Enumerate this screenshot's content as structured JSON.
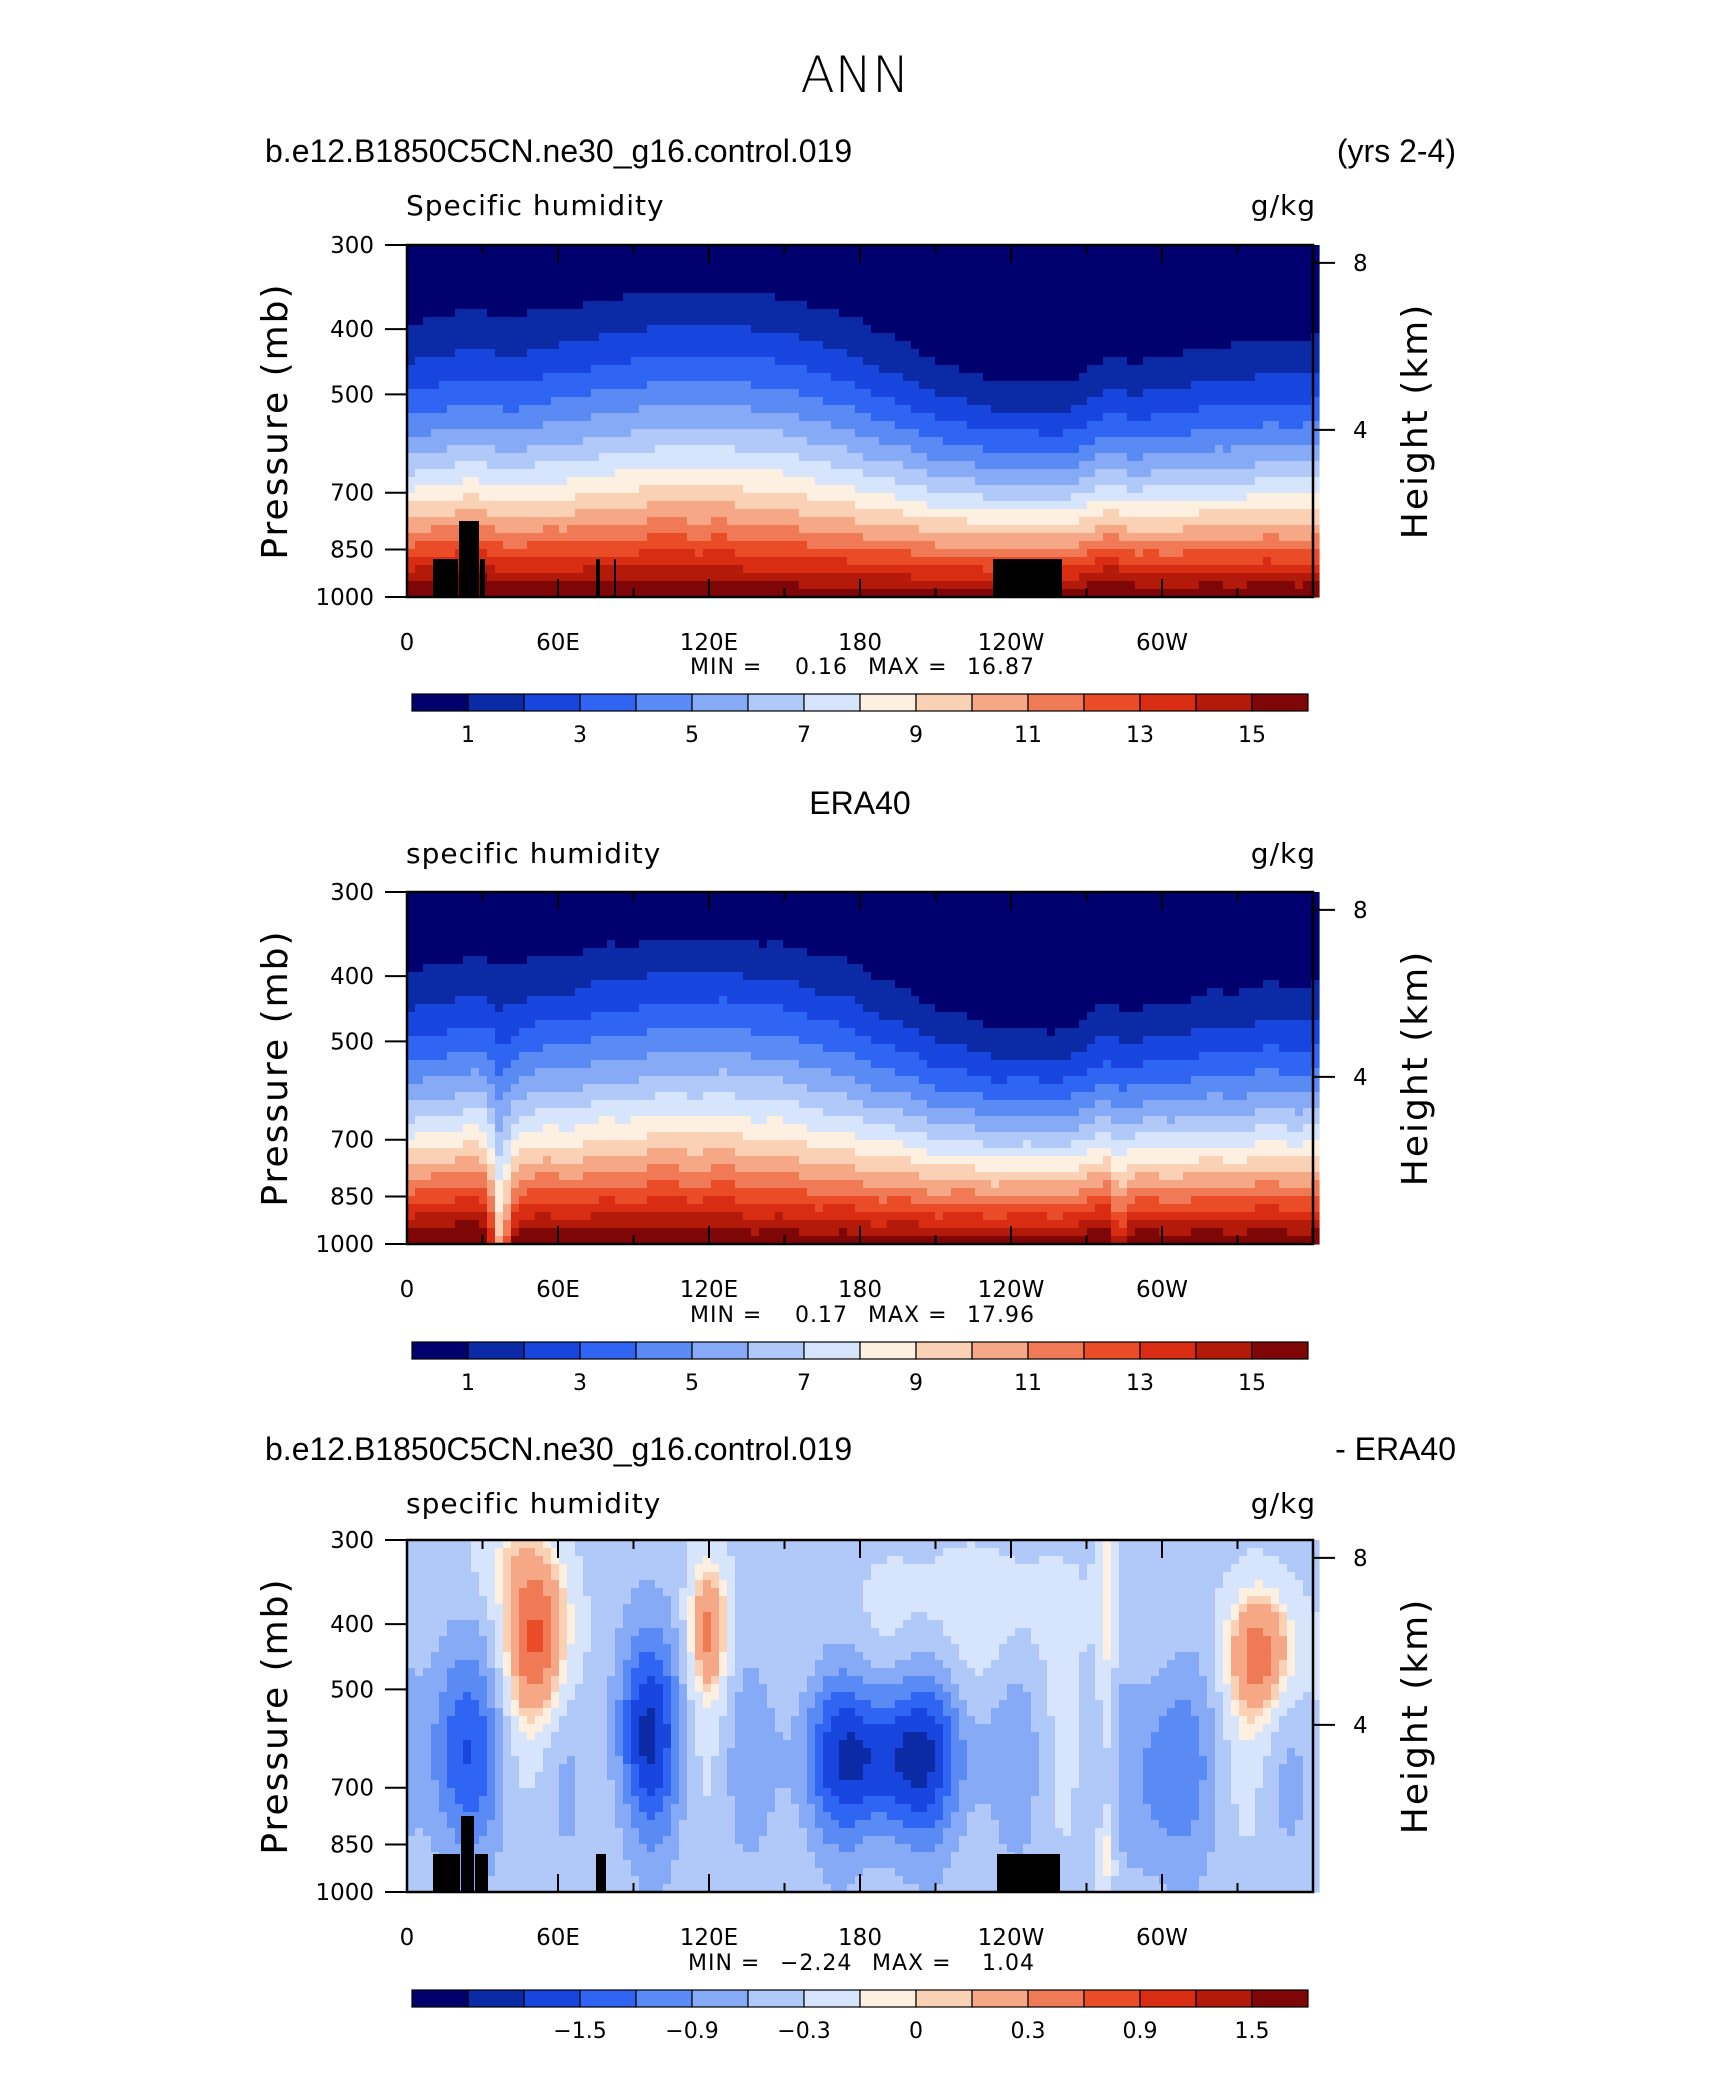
{
  "page_title": "ANN",
  "panels": [
    {
      "header_left": "b.e12.B1850C5CN.ne30_g16.control.019",
      "header_right": "(yrs 2-4)",
      "subtitle_left": "Specific humidity",
      "subtitle_right": "g/kg",
      "stats": {
        "min_label": "MIN =",
        "min": "0.16",
        "max_label": "MAX =",
        "max": "16.87"
      },
      "colorbar_labels": [
        "1",
        "3",
        "5",
        "7",
        "9",
        "11",
        "13",
        "15"
      ]
    },
    {
      "header_center": "ERA40",
      "subtitle_left": "specific humidity",
      "subtitle_right": "g/kg",
      "stats": {
        "min_label": "MIN =",
        "min": "0.17",
        "max_label": "MAX =",
        "max": "17.96"
      },
      "colorbar_labels": [
        "1",
        "3",
        "5",
        "7",
        "9",
        "11",
        "13",
        "15"
      ]
    },
    {
      "header_left": "b.e12.B1850C5CN.ne30_g16.control.019",
      "header_right": "- ERA40",
      "subtitle_left": "specific humidity",
      "subtitle_right": "g/kg",
      "stats": {
        "min_label": "MIN =",
        "min": "−2.24",
        "max_label": "MAX =",
        "max": "1.04"
      },
      "colorbar_labels": [
        "−1.5",
        "−0.9",
        "−0.3",
        "0",
        "0.3",
        "0.9",
        "1.5"
      ]
    }
  ],
  "colors": {
    "full_palette": [
      "#00006e",
      "#0a2aa6",
      "#1745dd",
      "#3064f2",
      "#5a8af4",
      "#86aaf6",
      "#b1c9f8",
      "#d6e5fb",
      "#fdf0e0",
      "#fbd1b5",
      "#f6a785",
      "#f07a55",
      "#ea4c28",
      "#d82d12",
      "#b31a0a",
      "#7e0606"
    ],
    "diff_palette": [
      "#00006e",
      "#0a2aa6",
      "#1745dd",
      "#3064f2",
      "#5a8af4",
      "#86aaf6",
      "#b1c9f8",
      "#d6e5fb",
      "#fdf0e0",
      "#fbd1b5",
      "#f6a785",
      "#f07a55",
      "#ea4c28",
      "#d82d12",
      "#b31a0a",
      "#7e0606"
    ],
    "topography": "#000000"
  },
  "chart_data": [
    {
      "type": "heatmap",
      "title": "Specific humidity",
      "units": "g/kg",
      "xlabel": "",
      "ylabel": "Pressure (mb)",
      "ylabel_right": "Height (km)",
      "x_ticklabels": [
        "0",
        "60E",
        "120E",
        "180",
        "120W",
        "60W"
      ],
      "x_range_deg": [
        0,
        360
      ],
      "y_ticklabels_left": [
        "300",
        "400",
        "500",
        "700",
        "850",
        "1000"
      ],
      "y_ticklabels_right": [
        "8",
        "4"
      ],
      "y_range_mb": [
        300,
        1000
      ],
      "scale": "log pressure",
      "levels": [
        0,
        1,
        2,
        3,
        4,
        5,
        6,
        7,
        8,
        9,
        10,
        11,
        12,
        13,
        14,
        15,
        16
      ],
      "min": 0.16,
      "max": 16.87
    },
    {
      "type": "heatmap",
      "title": "specific humidity",
      "units": "g/kg",
      "xlabel": "",
      "ylabel": "Pressure (mb)",
      "ylabel_right": "Height (km)",
      "x_ticklabels": [
        "0",
        "60E",
        "120E",
        "180",
        "120W",
        "60W"
      ],
      "x_range_deg": [
        0,
        360
      ],
      "y_ticklabels_left": [
        "300",
        "400",
        "500",
        "700",
        "850",
        "1000"
      ],
      "y_ticklabels_right": [
        "8",
        "4"
      ],
      "y_range_mb": [
        300,
        1000
      ],
      "scale": "log pressure",
      "levels": [
        0,
        1,
        2,
        3,
        4,
        5,
        6,
        7,
        8,
        9,
        10,
        11,
        12,
        13,
        14,
        15,
        16
      ],
      "min": 0.17,
      "max": 17.96
    },
    {
      "type": "heatmap",
      "title": "specific humidity",
      "units": "g/kg",
      "xlabel": "",
      "ylabel": "Pressure (mb)",
      "ylabel_right": "Height (km)",
      "x_ticklabels": [
        "0",
        "60E",
        "120E",
        "180",
        "120W",
        "60W"
      ],
      "x_range_deg": [
        0,
        360
      ],
      "y_ticklabels_left": [
        "300",
        "400",
        "500",
        "700",
        "850",
        "1000"
      ],
      "y_ticklabels_right": [
        "8",
        "4"
      ],
      "y_range_mb": [
        300,
        1000
      ],
      "scale": "log pressure",
      "levels": [
        -2.4,
        -2.1,
        -1.8,
        -1.5,
        -1.2,
        -0.9,
        -0.6,
        -0.3,
        0,
        0.15,
        0.3,
        0.6,
        0.9,
        1.2,
        1.5,
        1.8,
        2.1
      ],
      "min": -2.24,
      "max": 1.04
    }
  ]
}
